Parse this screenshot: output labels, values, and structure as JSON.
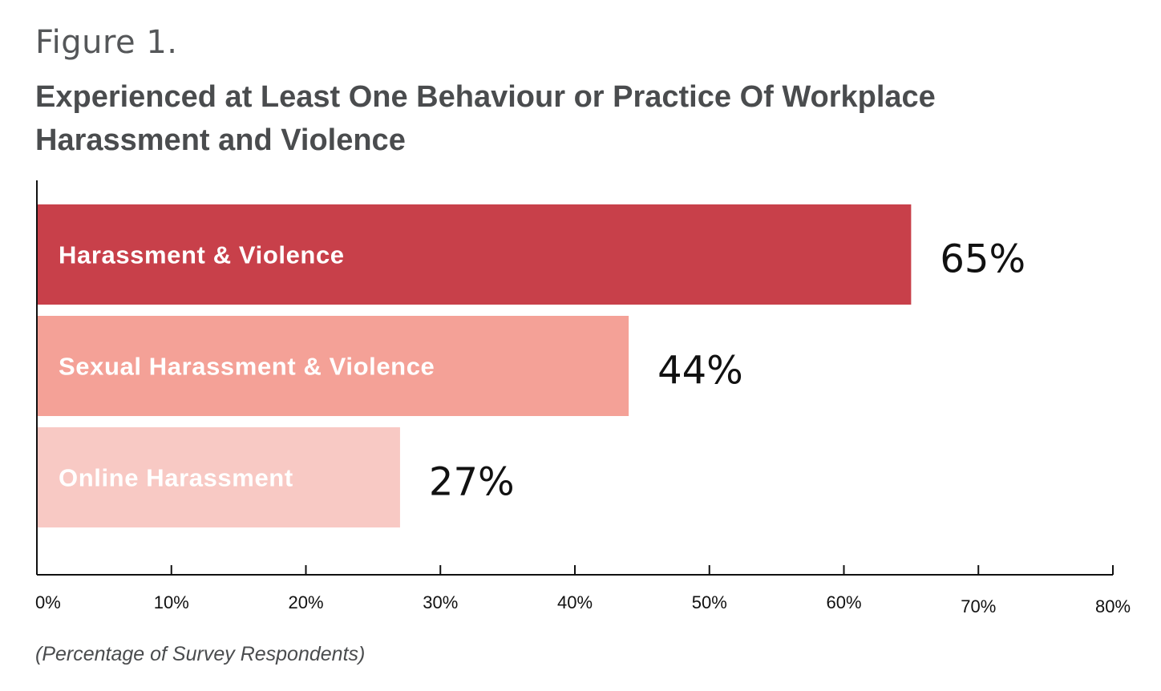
{
  "figure_label": "Figure 1.",
  "title": "Experienced at Least One Behaviour or Practice Of Workplace Harassment and Violence",
  "footnote": "(Percentage of Survey Respondents)",
  "chart_data": {
    "type": "bar",
    "orientation": "horizontal",
    "title": "Experienced at Least One Behaviour or Practice Of Workplace Harassment and Violence",
    "categories": [
      "Harassment & Violence",
      "Sexual Harassment & Violence",
      "Online Harassment"
    ],
    "values": [
      65,
      44,
      27
    ],
    "value_labels": [
      "65%",
      "44%",
      "27%"
    ],
    "colors": [
      "#c8404a",
      "#f4a197",
      "#f8c9c4"
    ],
    "label_colors": [
      "#ffffff",
      "#ffffff",
      "#ffffff"
    ],
    "xlim": [
      0,
      80
    ],
    "x_ticks": [
      0,
      10,
      20,
      30,
      40,
      50,
      60,
      70,
      80
    ],
    "x_tick_labels": [
      "0%",
      "10%",
      "20%",
      "30%",
      "40%",
      "50%",
      "60%",
      "70%",
      "80%"
    ],
    "xlabel": "(Percentage of Survey Respondents)",
    "grid": false,
    "legend": "none"
  }
}
